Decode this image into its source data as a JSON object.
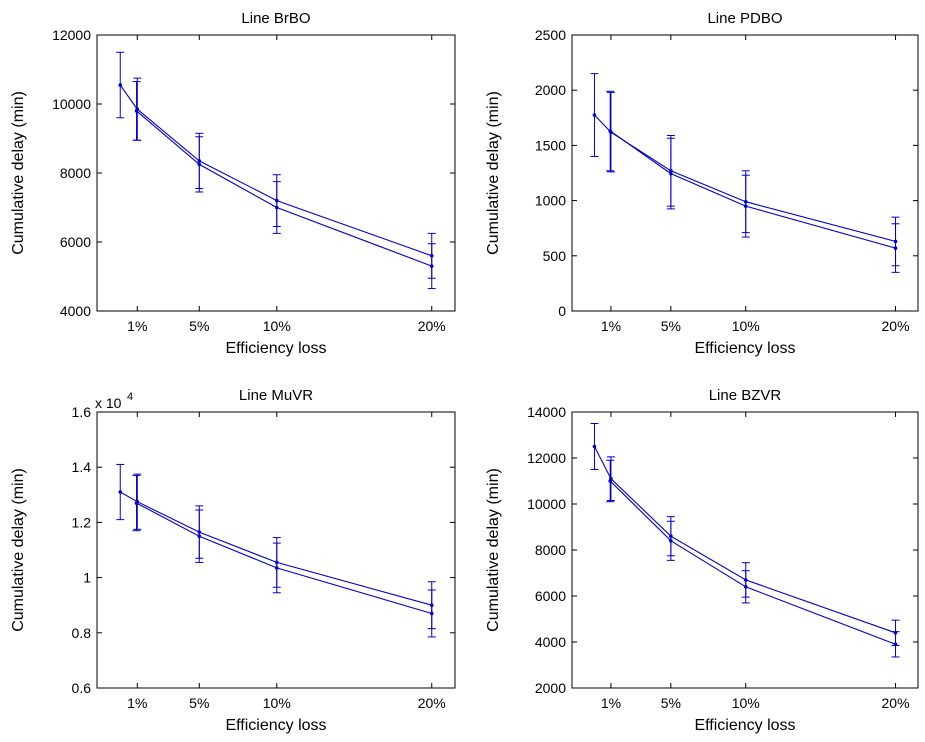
{
  "chart_data": [
    {
      "type": "line",
      "title": "Line BrBO",
      "xlabel": "Efficiency loss",
      "ylabel": "Cumulative delay (min)",
      "x_ticks": [
        1,
        5,
        10,
        20
      ],
      "x_tick_labels": [
        "1%",
        "5%",
        "10%",
        "20%"
      ],
      "y_ticks": [
        4000,
        6000,
        8000,
        10000,
        12000
      ],
      "y_tick_labels": [
        "4000",
        "6000",
        "8000",
        "10000",
        "12000"
      ],
      "y_multiplier": "",
      "xlim": [
        -1.6,
        21.5
      ],
      "ylim": [
        4000,
        12000
      ],
      "series": [
        {
          "x": [
            -0.1,
            1,
            5,
            10,
            20
          ],
          "y": [
            10550,
            9850,
            8350,
            7200,
            5600
          ],
          "err": [
            [
              950,
              950
            ],
            [
              900,
              900
            ],
            [
              800,
              800
            ],
            [
              750,
              750
            ],
            [
              650,
              650
            ]
          ]
        },
        {
          "x": [
            0.95,
            5,
            10,
            20
          ],
          "y": [
            9800,
            8250,
            7000,
            5300
          ],
          "err": [
            [
              850,
              850
            ],
            [
              800,
              800
            ],
            [
              750,
              750
            ],
            [
              650,
              650
            ]
          ]
        }
      ]
    },
    {
      "type": "line",
      "title": "Line PDBO",
      "xlabel": "Efficiency loss",
      "ylabel": "Cumulative delay (min)",
      "x_ticks": [
        1,
        5,
        10,
        20
      ],
      "x_tick_labels": [
        "1%",
        "5%",
        "10%",
        "20%"
      ],
      "y_ticks": [
        0,
        500,
        1000,
        1500,
        2000,
        2500
      ],
      "y_tick_labels": [
        "0",
        "500",
        "1000",
        "1500",
        "2000",
        "2500"
      ],
      "y_multiplier": "",
      "xlim": [
        -1.6,
        21.5
      ],
      "ylim": [
        0,
        2500
      ],
      "series": [
        {
          "x": [
            -0.1,
            1,
            5,
            10,
            20
          ],
          "y": [
            1775,
            1620,
            1270,
            990,
            630
          ],
          "err": [
            [
              375,
              375
            ],
            [
              360,
              360
            ],
            [
              320,
              320
            ],
            [
              280,
              280
            ],
            [
              220,
              220
            ]
          ]
        },
        {
          "x": [
            0.95,
            5,
            10,
            20
          ],
          "y": [
            1630,
            1245,
            950,
            570
          ],
          "err": [
            [
              360,
              360
            ],
            [
              320,
              320
            ],
            [
              280,
              280
            ],
            [
              220,
              220
            ]
          ]
        }
      ]
    },
    {
      "type": "line",
      "title": "Line MuVR",
      "xlabel": "Efficiency loss",
      "ylabel": "Cumulative delay (min)",
      "x_ticks": [
        1,
        5,
        10,
        20
      ],
      "x_tick_labels": [
        "1%",
        "5%",
        "10%",
        "20%"
      ],
      "y_ticks": [
        0.6,
        0.8,
        1.0,
        1.2,
        1.4,
        1.6
      ],
      "y_tick_labels": [
        "0.6",
        "0.8",
        "1",
        "1.2",
        "1.4",
        "1.6"
      ],
      "y_multiplier": "x 10",
      "y_multiplier_exp": "4",
      "xlim": [
        -1.6,
        21.5
      ],
      "ylim": [
        0.6,
        1.6
      ],
      "series": [
        {
          "x": [
            -0.1,
            1,
            5,
            10,
            20
          ],
          "y": [
            1.31,
            1.275,
            1.165,
            1.055,
            0.9
          ],
          "err": [
            [
              0.1,
              0.1
            ],
            [
              0.1,
              0.1
            ],
            [
              0.095,
              0.095
            ],
            [
              0.09,
              0.09
            ],
            [
              0.085,
              0.085
            ]
          ]
        },
        {
          "x": [
            0.95,
            5,
            10,
            20
          ],
          "y": [
            1.27,
            1.15,
            1.035,
            0.87
          ],
          "err": [
            [
              0.1,
              0.1
            ],
            [
              0.095,
              0.095
            ],
            [
              0.09,
              0.09
            ],
            [
              0.085,
              0.085
            ]
          ]
        }
      ]
    },
    {
      "type": "line",
      "title": "Line BZVR",
      "xlabel": "Efficiency loss",
      "ylabel": "Cumulative delay (min)",
      "x_ticks": [
        1,
        5,
        10,
        20
      ],
      "x_tick_labels": [
        "1%",
        "5%",
        "10%",
        "20%"
      ],
      "y_ticks": [
        2000,
        4000,
        6000,
        8000,
        10000,
        12000,
        14000
      ],
      "y_tick_labels": [
        "2000",
        "4000",
        "6000",
        "8000",
        "10000",
        "12000",
        "14000"
      ],
      "y_multiplier": "",
      "xlim": [
        -1.6,
        21.5
      ],
      "ylim": [
        2000,
        14000
      ],
      "series": [
        {
          "x": [
            -0.1,
            1,
            5,
            10,
            20
          ],
          "y": [
            12500,
            11100,
            8600,
            6700,
            4400
          ],
          "err": [
            [
              1000,
              1000
            ],
            [
              950,
              950
            ],
            [
              850,
              850
            ],
            [
              750,
              750
            ],
            [
              550,
              550
            ]
          ]
        },
        {
          "x": [
            0.95,
            5,
            10,
            20
          ],
          "y": [
            11000,
            8400,
            6400,
            3900
          ],
          "err": [
            [
              900,
              900
            ],
            [
              850,
              850
            ],
            [
              700,
              700
            ],
            [
              550,
              550
            ]
          ]
        }
      ]
    }
  ],
  "colors": {
    "series": "#0000d0",
    "axis": "#000000"
  }
}
